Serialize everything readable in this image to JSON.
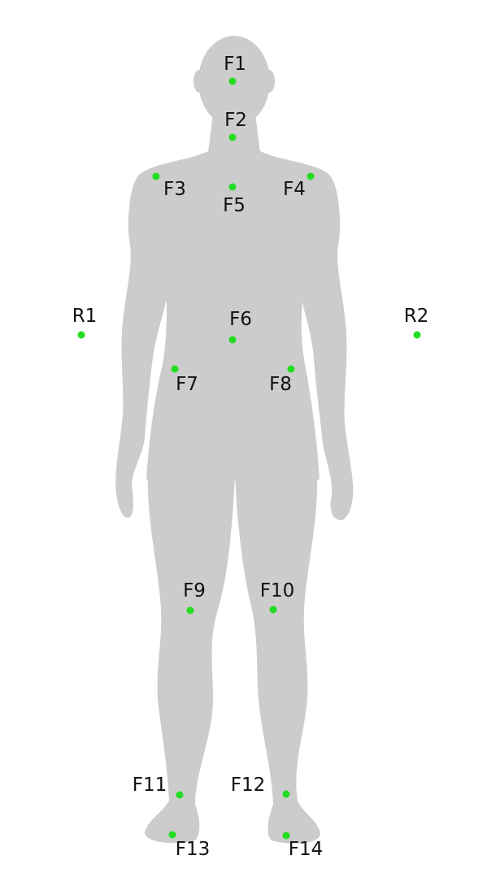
{
  "figure": {
    "body_color": "#cccccc",
    "point_color": "#22dd22",
    "label_color": "#111111"
  },
  "points": [
    {
      "id": "F1",
      "label": "F1"
    },
    {
      "id": "F2",
      "label": "F2"
    },
    {
      "id": "F3",
      "label": "F3"
    },
    {
      "id": "F4",
      "label": "F4"
    },
    {
      "id": "F5",
      "label": "F5"
    },
    {
      "id": "R1",
      "label": "R1"
    },
    {
      "id": "R2",
      "label": "R2"
    },
    {
      "id": "F6",
      "label": "F6"
    },
    {
      "id": "F7",
      "label": "F7"
    },
    {
      "id": "F8",
      "label": "F8"
    },
    {
      "id": "F9",
      "label": "F9"
    },
    {
      "id": "F10",
      "label": "F10"
    },
    {
      "id": "F11",
      "label": "F11"
    },
    {
      "id": "F12",
      "label": "F12"
    },
    {
      "id": "F13",
      "label": "F13"
    },
    {
      "id": "F14",
      "label": "F14"
    }
  ]
}
